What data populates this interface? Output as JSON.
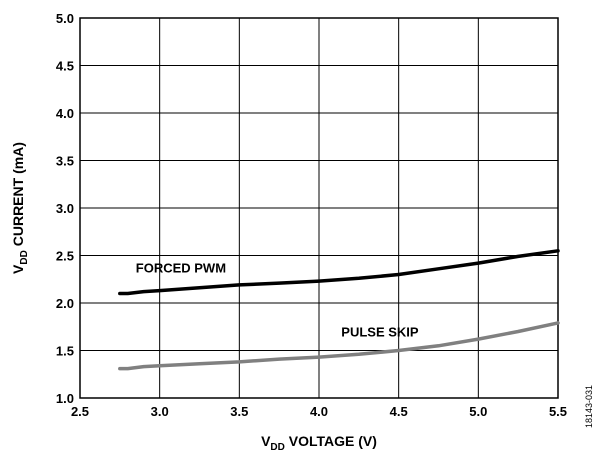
{
  "chart_data": {
    "type": "line",
    "xlabel_main": "V",
    "xlabel_sub": "DD",
    "xlabel_rest": " VOLTAGE (V)",
    "ylabel_main": "V",
    "ylabel_sub": "DD",
    "ylabel_rest": " CURRENT (mA)",
    "xlim": [
      2.5,
      5.5
    ],
    "ylim": [
      1.0,
      5.0
    ],
    "xticks": [
      "2.5",
      "3.0",
      "3.5",
      "4.0",
      "4.5",
      "5.0",
      "5.5"
    ],
    "yticks": [
      "1.0",
      "1.5",
      "2.0",
      "2.5",
      "3.0",
      "3.5",
      "4.0",
      "4.5",
      "5.0"
    ],
    "grid": true,
    "series": [
      {
        "name": "FORCED PWM",
        "color": "#000000",
        "points": [
          [
            2.75,
            2.1
          ],
          [
            2.8,
            2.1
          ],
          [
            2.9,
            2.12
          ],
          [
            3.0,
            2.13
          ],
          [
            3.25,
            2.16
          ],
          [
            3.5,
            2.19
          ],
          [
            3.75,
            2.21
          ],
          [
            4.0,
            2.23
          ],
          [
            4.25,
            2.26
          ],
          [
            4.5,
            2.3
          ],
          [
            4.75,
            2.36
          ],
          [
            5.0,
            2.42
          ],
          [
            5.25,
            2.49
          ],
          [
            5.5,
            2.55
          ]
        ]
      },
      {
        "name": "PULSE SKIP",
        "color": "#808080",
        "points": [
          [
            2.75,
            1.31
          ],
          [
            2.8,
            1.31
          ],
          [
            2.9,
            1.33
          ],
          [
            3.0,
            1.34
          ],
          [
            3.25,
            1.36
          ],
          [
            3.5,
            1.38
          ],
          [
            3.75,
            1.41
          ],
          [
            4.0,
            1.43
          ],
          [
            4.25,
            1.46
          ],
          [
            4.5,
            1.5
          ],
          [
            4.75,
            1.55
          ],
          [
            5.0,
            1.62
          ],
          [
            5.25,
            1.7
          ],
          [
            5.5,
            1.79
          ]
        ]
      }
    ],
    "annotations": [
      {
        "text": "FORCED PWM",
        "x": 2.85,
        "y": 2.32
      },
      {
        "text": "PULSE SKIP",
        "x": 4.14,
        "y": 1.65
      }
    ],
    "figure_id": "18143-031"
  }
}
